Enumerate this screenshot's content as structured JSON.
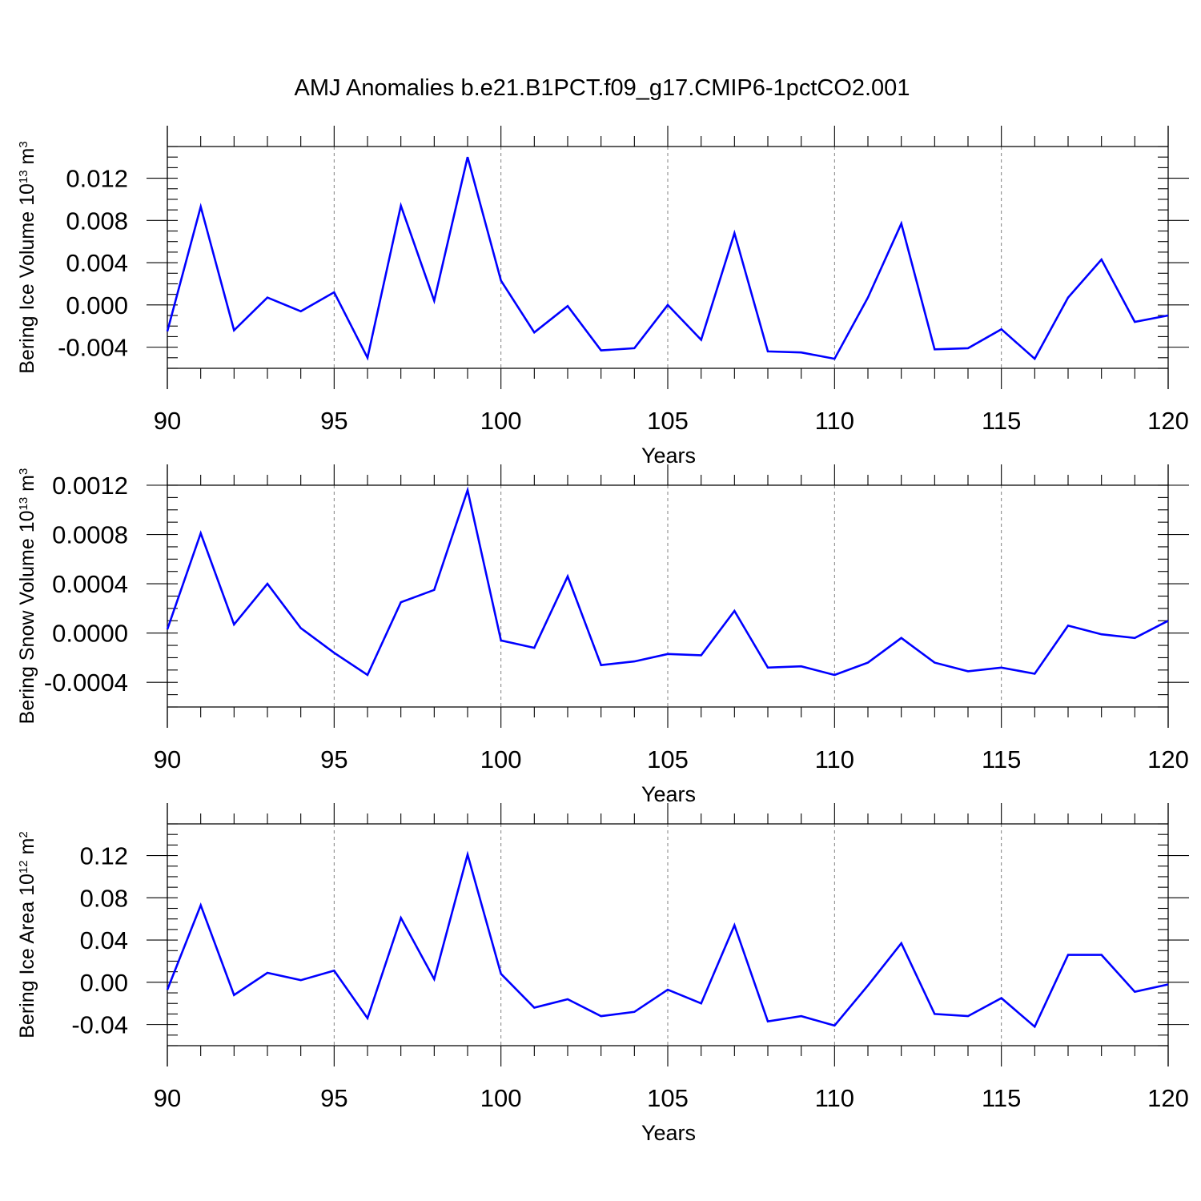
{
  "figure_title": "AMJ Anomalies b.e21.B1PCT.f09_g17.CMIP6-1pctCO2.001",
  "line_color": "#0000ff",
  "chart_data": [
    {
      "type": "line",
      "title": "AMJ Anomalies b.e21.B1PCT.f09_g17.CMIP6-1pctCO2.001",
      "xlabel": "Years",
      "ylabel": {
        "base": "Bering Ice Volume 10",
        "exp": "13",
        "unit": " m",
        "unit_exp": "3"
      },
      "xlim": [
        90,
        120
      ],
      "ylim": [
        -0.006,
        0.015
      ],
      "xticks": [
        90,
        95,
        100,
        105,
        110,
        115,
        120
      ],
      "xtick_labels": [
        "90",
        "95",
        "100",
        "105",
        "110",
        "115",
        "120"
      ],
      "yticks": [
        -0.004,
        0.0,
        0.004,
        0.008,
        0.012
      ],
      "ytick_labels": [
        "-0.004",
        "0.000",
        "0.004",
        "0.008",
        "0.012"
      ],
      "yminor_step": 0.001,
      "grid": "vertical dashed at major x ticks",
      "series": [
        {
          "x": [
            90,
            91,
            92,
            93,
            94,
            95,
            96,
            97,
            98,
            99,
            100,
            101,
            102,
            103,
            104,
            105,
            106,
            107,
            108,
            109,
            110,
            111,
            112,
            113,
            114,
            115,
            116,
            117,
            118,
            119,
            120
          ],
          "values": [
            -0.0025,
            0.0093,
            -0.0024,
            0.0007,
            -0.0006,
            0.0012,
            -0.005,
            0.0094,
            0.0004,
            0.014,
            0.0023,
            -0.0026,
            -0.0001,
            -0.0043,
            -0.0041,
            0.0,
            -0.0033,
            0.0068,
            -0.0044,
            -0.0045,
            -0.0051,
            0.0007,
            0.0077,
            -0.0042,
            -0.0041,
            -0.0023,
            -0.0051,
            0.0007,
            0.0043,
            -0.0016,
            -0.001
          ]
        }
      ]
    },
    {
      "type": "line",
      "xlabel": "Years",
      "ylabel": {
        "base": "Bering Snow Volume 10",
        "exp": "13",
        "unit": " m",
        "unit_exp": "3"
      },
      "xlim": [
        90,
        120
      ],
      "ylim": [
        -0.0006,
        0.0012
      ],
      "xticks": [
        90,
        95,
        100,
        105,
        110,
        115,
        120
      ],
      "xtick_labels": [
        "90",
        "95",
        "100",
        "105",
        "110",
        "115",
        "120"
      ],
      "yticks": [
        -0.0004,
        0.0,
        0.0004,
        0.0008,
        0.0012
      ],
      "ytick_labels": [
        "-0.0004",
        "0.0000",
        "0.0004",
        "0.0008",
        "0.0012"
      ],
      "yminor_step": 0.0001,
      "grid": "vertical dashed at major x ticks",
      "series": [
        {
          "x": [
            90,
            91,
            92,
            93,
            94,
            95,
            96,
            97,
            98,
            99,
            100,
            101,
            102,
            103,
            104,
            105,
            106,
            107,
            108,
            109,
            110,
            111,
            112,
            113,
            114,
            115,
            116,
            117,
            118,
            119,
            120
          ],
          "values": [
            3e-05,
            0.00081,
            7e-05,
            0.0004,
            4e-05,
            -0.00016,
            -0.00034,
            0.00025,
            0.00035,
            0.00116,
            -6e-05,
            -0.00012,
            0.00046,
            -0.00026,
            -0.00023,
            -0.00017,
            -0.00018,
            0.00018,
            -0.00028,
            -0.00027,
            -0.00034,
            -0.00024,
            -4e-05,
            -0.00024,
            -0.00031,
            -0.00028,
            -0.00033,
            6e-05,
            -1e-05,
            -4e-05,
            0.0001
          ]
        }
      ]
    },
    {
      "type": "line",
      "xlabel": "Years",
      "ylabel": {
        "base": "Bering Ice Area 10",
        "exp": "12",
        "unit": " m",
        "unit_exp": "2"
      },
      "xlim": [
        90,
        120
      ],
      "ylim": [
        -0.06,
        0.15
      ],
      "xticks": [
        90,
        95,
        100,
        105,
        110,
        115,
        120
      ],
      "xtick_labels": [
        "90",
        "95",
        "100",
        "105",
        "110",
        "115",
        "120"
      ],
      "yticks": [
        -0.04,
        0.0,
        0.04,
        0.08,
        0.12
      ],
      "ytick_labels": [
        "-0.04",
        "0.00",
        "0.04",
        "0.08",
        "0.12"
      ],
      "yminor_step": 0.01,
      "grid": "vertical dashed at major x ticks",
      "series": [
        {
          "x": [
            90,
            91,
            92,
            93,
            94,
            95,
            96,
            97,
            98,
            99,
            100,
            101,
            102,
            103,
            104,
            105,
            106,
            107,
            108,
            109,
            110,
            111,
            112,
            113,
            114,
            115,
            116,
            117,
            118,
            119,
            120
          ],
          "values": [
            -0.007,
            0.073,
            -0.012,
            0.009,
            0.002,
            0.011,
            -0.034,
            0.061,
            0.003,
            0.121,
            0.008,
            -0.024,
            -0.016,
            -0.032,
            -0.028,
            -0.007,
            -0.02,
            0.054,
            -0.037,
            -0.032,
            -0.041,
            -0.003,
            0.037,
            -0.03,
            -0.032,
            -0.015,
            -0.042,
            0.026,
            0.026,
            -0.009,
            -0.002
          ]
        }
      ]
    }
  ]
}
